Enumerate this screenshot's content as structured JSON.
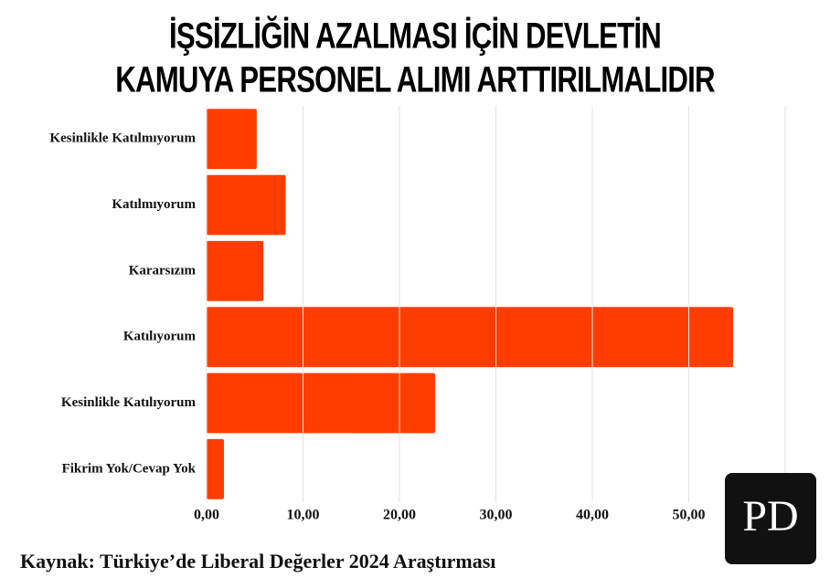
{
  "chart_data": {
    "type": "bar",
    "orientation": "horizontal",
    "title": [
      "İŞSİZLİĞİN AZALMASI İÇİN DEVLETİN",
      "KAMUYA PERSONEL ALIMI ARTTIRILMALIDIR"
    ],
    "categories": [
      "Kesinlikle Katılmıyorum",
      "Katılmıyorum",
      "Kararsızım",
      "Katılıyorum",
      "Kesinlikle Katılıyorum",
      "Fikrim Yok/Cevap Yok"
    ],
    "values": [
      5.2,
      8.2,
      5.9,
      54.6,
      23.7,
      1.8
    ],
    "color": "#ff3d00",
    "xlim": [
      0,
      60
    ],
    "xticks": [
      {
        "value": 0,
        "label": "0,00"
      },
      {
        "value": 10,
        "label": "10,00"
      },
      {
        "value": 20,
        "label": "20,00"
      },
      {
        "value": 30,
        "label": "30,00"
      },
      {
        "value": 40,
        "label": "40,00"
      },
      {
        "value": 50,
        "label": "50,00"
      }
    ],
    "grid": true,
    "source": "Kaynak: Türkiye’de Liberal Değerler 2024 Araştırması",
    "logo": "PD"
  }
}
